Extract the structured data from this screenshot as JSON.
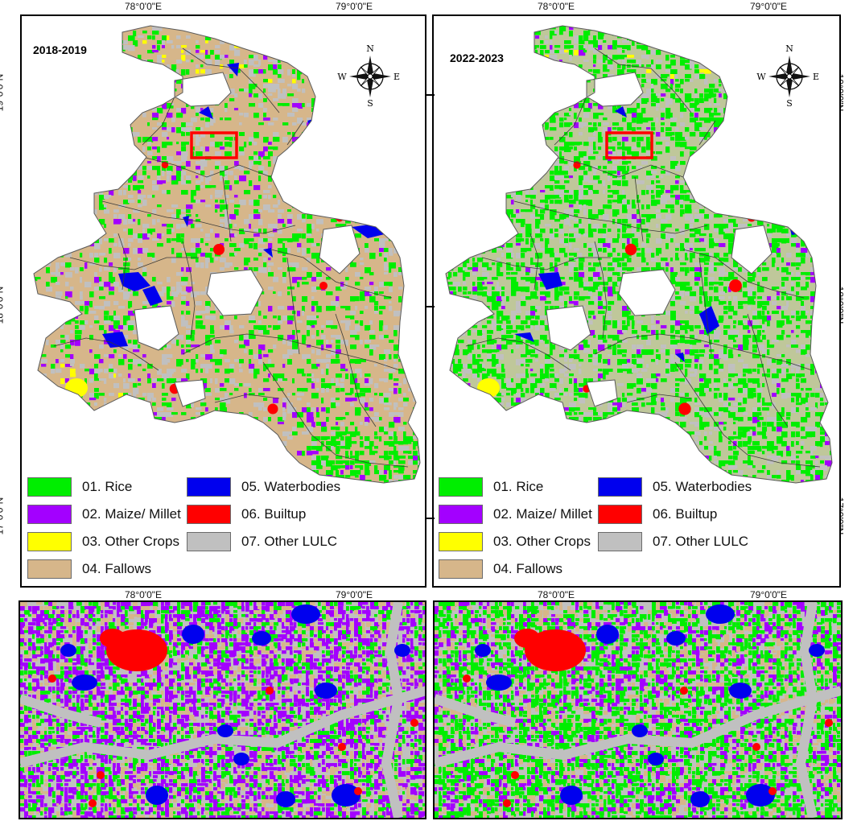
{
  "colors": {
    "rice": "#00ee00",
    "maize": "#a300ff",
    "other_crops": "#ffff00",
    "fallows": "#d6b68a",
    "waterbodies": "#0000ee",
    "builtup": "#ff0000",
    "other_lulc": "#c0c0c0",
    "outline": "#5a5a5a",
    "zoom_box": "#ff0000"
  },
  "axes": {
    "lon_labels": [
      "78°0'0\"E",
      "79°0'0\"E"
    ],
    "lat_labels": [
      "19°0'0\"N",
      "18°0'0\"N",
      "17°0'0\"N"
    ]
  },
  "compass": {
    "n": "N",
    "s": "S",
    "e": "E",
    "w": "W"
  },
  "panels": [
    {
      "period": "2018-2019",
      "dominant": "fallows"
    },
    {
      "period": "2022-2023",
      "dominant": "rice"
    }
  ],
  "legend": {
    "items": [
      {
        "id": "rice",
        "label": "01. Rice"
      },
      {
        "id": "maize",
        "label": "02. Maize/ Millet"
      },
      {
        "id": "other_crops",
        "label": "03. Other Crops"
      },
      {
        "id": "fallows",
        "label": "04. Fallows"
      },
      {
        "id": "waterbodies",
        "label": "05. Waterbodies"
      },
      {
        "id": "builtup",
        "label": "06. Builtup"
      },
      {
        "id": "other_lulc",
        "label": "07. Other LULC"
      }
    ]
  },
  "insets": [
    {
      "period": "2018-2019",
      "dominant": "maize"
    },
    {
      "period": "2022-2023",
      "dominant": "rice"
    }
  ]
}
